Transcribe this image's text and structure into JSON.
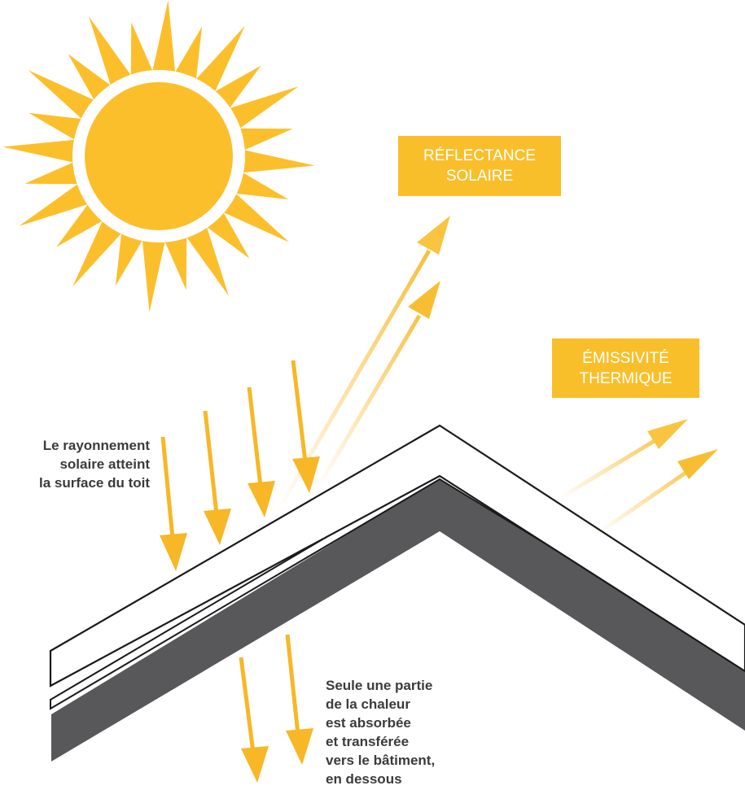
{
  "colors": {
    "sun": "#FCBF2C",
    "arrow": "#F7B727",
    "label_bg": "#F9BF2B",
    "roof_dark": "#58585A",
    "outline": "#1a1a1a",
    "text": "#3b3b3b"
  },
  "icons": {
    "sun": "sun-icon",
    "arrow": "arrow-icon"
  },
  "labels": {
    "reflectance": [
      "RÉFLECTANCE",
      "SOLAIRE"
    ],
    "emissivity": [
      "ÉMISSIVITÉ",
      "THERMIQUE"
    ]
  },
  "captions": {
    "incoming": [
      "Le rayonnement",
      "solaire atteint",
      "la surface du toit"
    ],
    "absorbed": [
      "Seule une partie",
      "de la chaleur",
      "est absorbée",
      "et transférée",
      "vers le bâtiment,",
      "en dessous"
    ]
  }
}
